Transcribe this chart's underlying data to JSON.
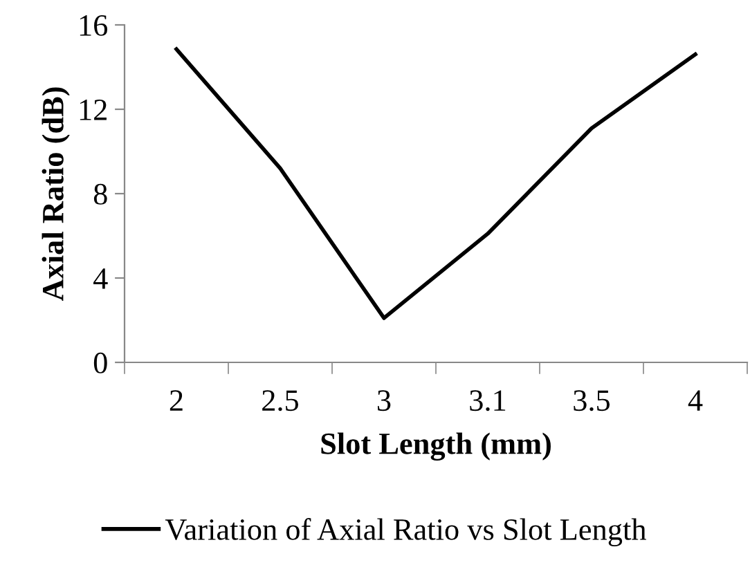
{
  "chart_data": {
    "type": "line",
    "xlabel": "Slot Length (mm)",
    "ylabel": "Axial Ratio (dB)",
    "categories": [
      "2",
      "2.5",
      "3",
      "3.1",
      "3.5",
      "4"
    ],
    "series": [
      {
        "name": "Variation of Axial Ratio vs Slot Length",
        "color": "#000000",
        "values": [
          14.85,
          9.2,
          2.1,
          6.1,
          11.1,
          14.6
        ]
      }
    ],
    "ylim": [
      0,
      16
    ],
    "yticks": [
      0,
      4,
      8,
      12,
      16
    ],
    "grid": false,
    "legend": "bottom",
    "marker": "none",
    "line_style": "solid"
  }
}
